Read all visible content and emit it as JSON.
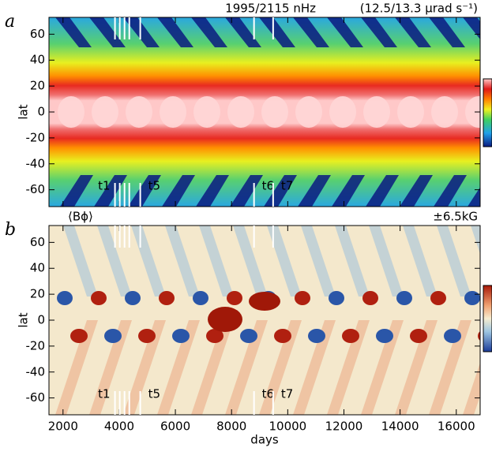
{
  "chart_data": [
    {
      "type": "heatmap",
      "panel_label": "a",
      "title": "1995/2115 nHz",
      "subtitle": "(12.5/13.3 µrad s⁻¹)",
      "y_label": "lat",
      "xlim": [
        1500,
        16850
      ],
      "ylim": [
        -73,
        73
      ],
      "xticks": [
        2000,
        4000,
        6000,
        8000,
        10000,
        12000,
        14000,
        16000
      ],
      "yticks": [
        -60,
        -40,
        -20,
        0,
        20,
        40,
        60
      ],
      "markers": [
        {
          "x": 3850,
          "label": "t1"
        },
        {
          "x": 4020,
          "label": null
        },
        {
          "x": 4190,
          "label": null
        },
        {
          "x": 4360,
          "label": null
        },
        {
          "x": 4750,
          "label": "t5"
        },
        {
          "x": 8800,
          "label": "t6"
        },
        {
          "x": 9480,
          "label": "t7"
        }
      ]
    },
    {
      "type": "heatmap",
      "panel_label": "b",
      "title": "⟨Bϕ⟩",
      "subtitle": "±6.5kG",
      "y_label": "lat",
      "x_label": "days",
      "xlim": [
        1500,
        16850
      ],
      "ylim": [
        -73,
        73
      ],
      "xticks": [
        2000,
        4000,
        6000,
        8000,
        10000,
        12000,
        14000,
        16000
      ],
      "yticks": [
        -60,
        -40,
        -20,
        0,
        20,
        40,
        60
      ],
      "markers": [
        {
          "x": 3850,
          "label": "t1"
        },
        {
          "x": 4020,
          "label": null
        },
        {
          "x": 4190,
          "label": null
        },
        {
          "x": 4360,
          "label": null
        },
        {
          "x": 4750,
          "label": "t5"
        },
        {
          "x": 8800,
          "label": "t6"
        },
        {
          "x": 9480,
          "label": "t7"
        }
      ]
    }
  ]
}
